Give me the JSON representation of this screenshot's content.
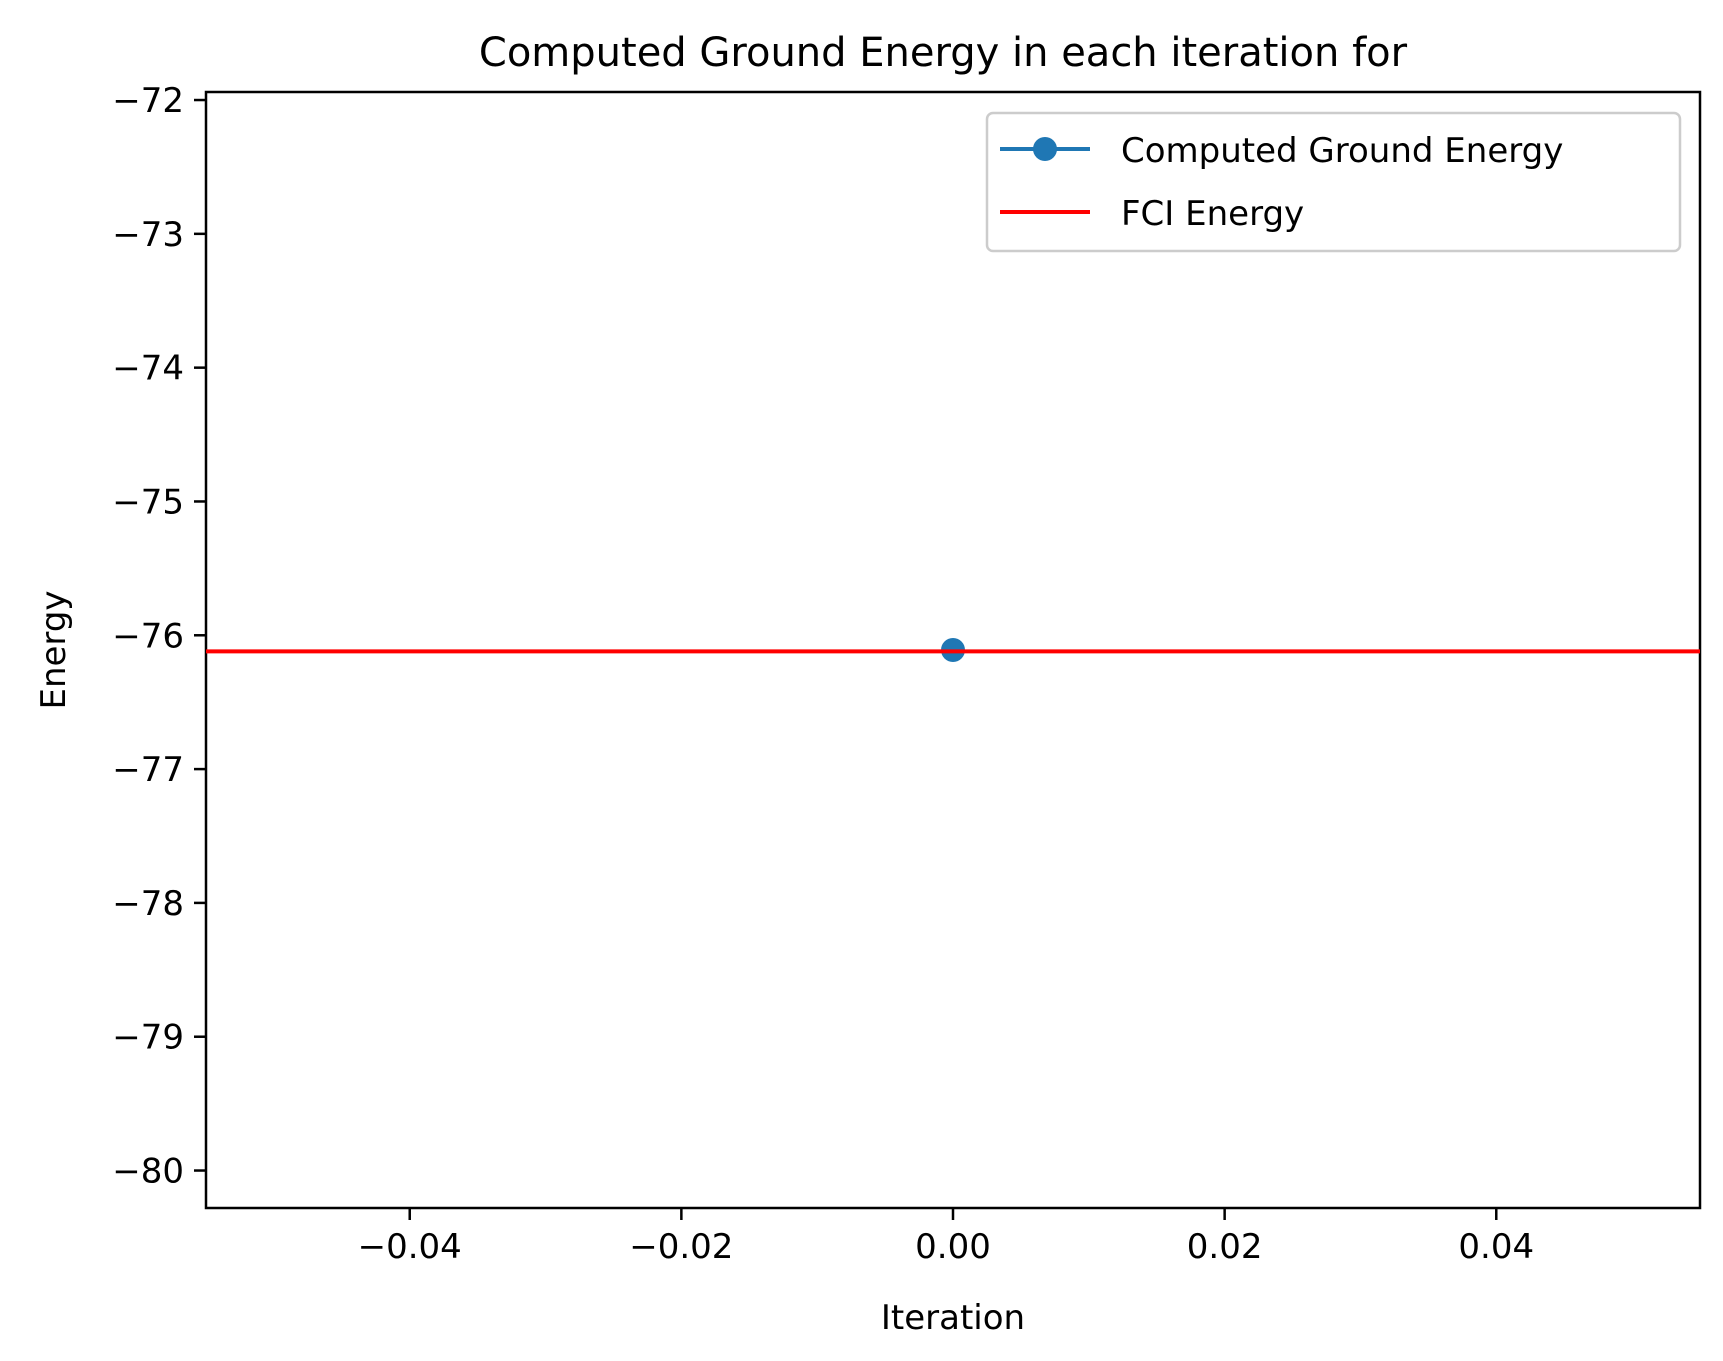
{
  "chart_data": {
    "type": "line",
    "title": "Computed Ground Energy in each iteration for",
    "xlabel": "Iteration",
    "ylabel": "Energy",
    "xlim": [
      -0.055,
      0.055
    ],
    "ylim": [
      -80.28,
      -71.94
    ],
    "x_ticks": [
      {
        "value": -0.04,
        "label": "−0.04"
      },
      {
        "value": -0.02,
        "label": "−0.02"
      },
      {
        "value": 0.0,
        "label": "0.00"
      },
      {
        "value": 0.02,
        "label": "0.02"
      },
      {
        "value": 0.04,
        "label": "0.04"
      }
    ],
    "y_ticks": [
      {
        "value": -72,
        "label": "−72"
      },
      {
        "value": -73,
        "label": "−73"
      },
      {
        "value": -74,
        "label": "−74"
      },
      {
        "value": -75,
        "label": "−75"
      },
      {
        "value": -76,
        "label": "−76"
      },
      {
        "value": -77,
        "label": "−77"
      },
      {
        "value": -78,
        "label": "−78"
      },
      {
        "value": -79,
        "label": "−79"
      },
      {
        "value": -80,
        "label": "−80"
      }
    ],
    "grid": false,
    "legend_position": "top-right",
    "series": [
      {
        "name": "Computed Ground Energy",
        "kind": "line-marker",
        "color": "#1f77b4",
        "points": [
          {
            "x": 0.0,
            "y": -76.11
          }
        ]
      },
      {
        "name": "FCI Energy",
        "kind": "hline",
        "color": "#ff0000",
        "y": -76.12
      }
    ]
  }
}
